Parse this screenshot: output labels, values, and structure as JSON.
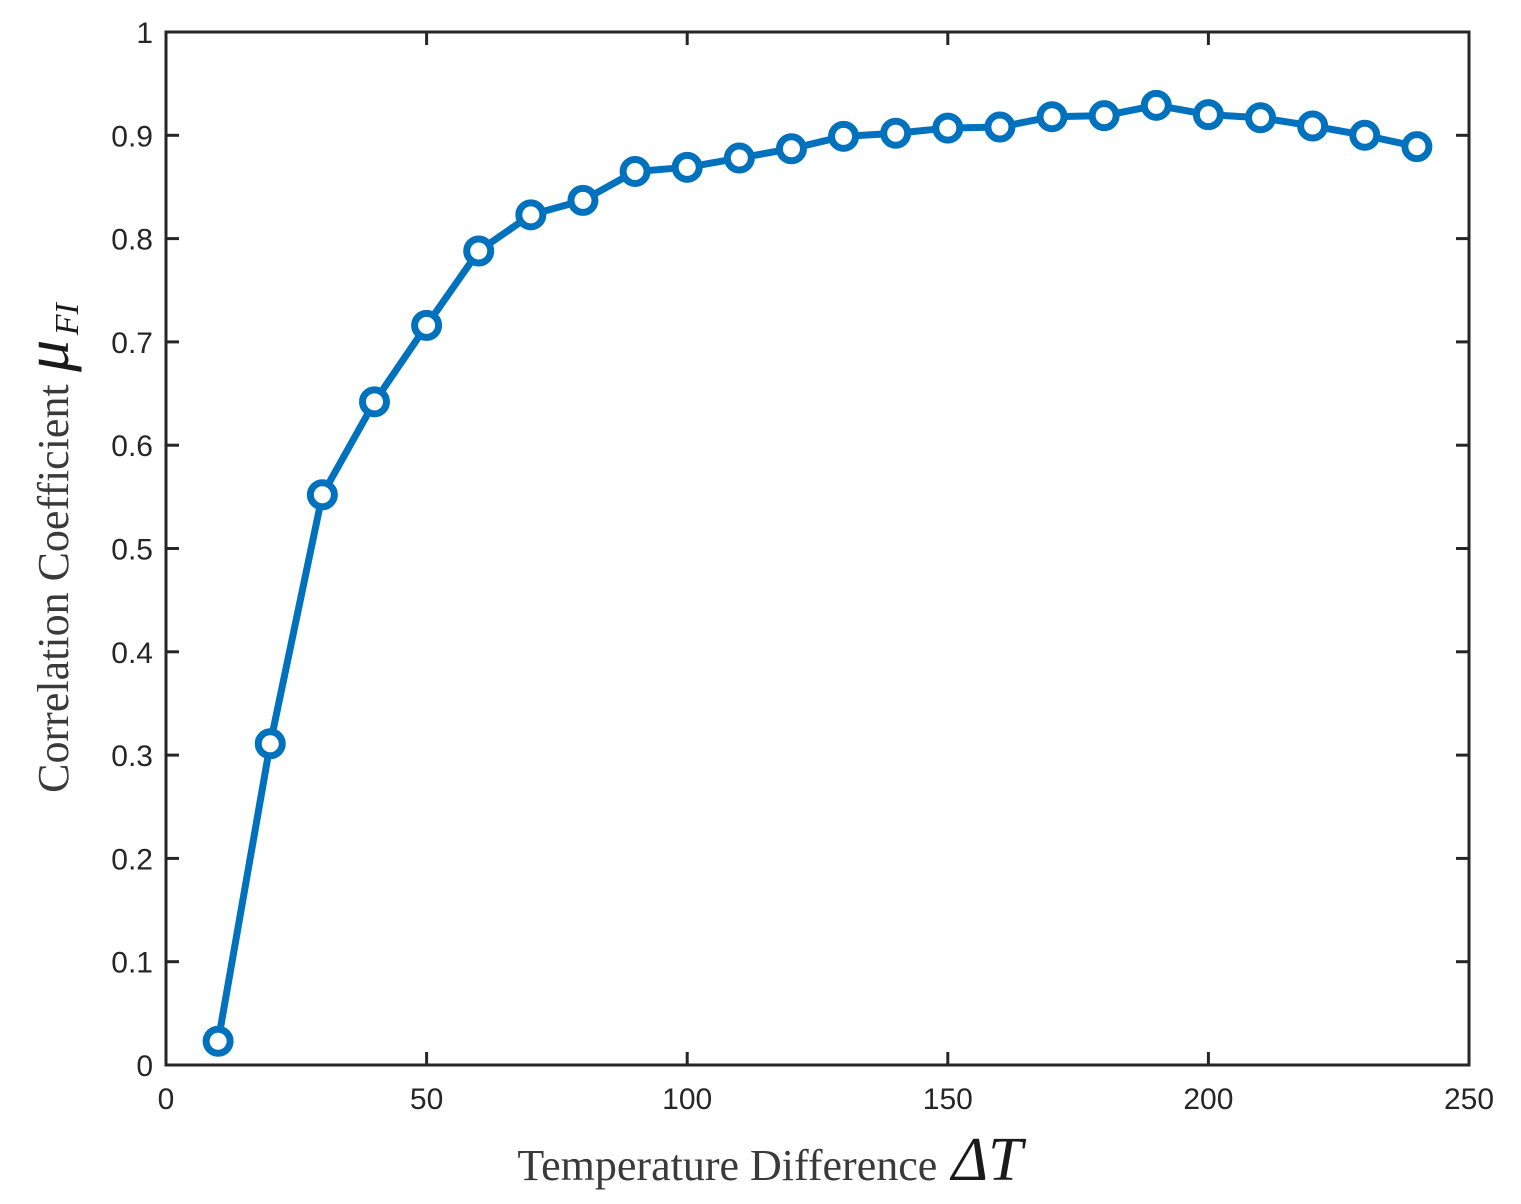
{
  "chart_data": {
    "type": "line",
    "title": "",
    "xlabel": "Temperature Difference",
    "xlabel_symbol": "ΔT",
    "ylabel": "Correlation Coefficient",
    "ylabel_symbol": "μ",
    "ylabel_symbol_sub": "FI",
    "xlim": [
      0,
      250
    ],
    "ylim": [
      0,
      1
    ],
    "x_ticks": [
      0,
      50,
      100,
      150,
      200,
      250
    ],
    "x_tick_labels": [
      "0",
      "50",
      "100",
      "150",
      "200",
      "250"
    ],
    "y_ticks": [
      0,
      0.1,
      0.2,
      0.3,
      0.4,
      0.5,
      0.6,
      0.7,
      0.8,
      0.9,
      1
    ],
    "y_tick_labels": [
      "0",
      "0.1",
      "0.2",
      "0.3",
      "0.4",
      "0.5",
      "0.6",
      "0.7",
      "0.8",
      "0.9",
      "1"
    ],
    "grid": false,
    "legend": "none",
    "series": [
      {
        "color": "#0072BD",
        "marker": "circle",
        "x": [
          10,
          20,
          30,
          40,
          50,
          60,
          70,
          80,
          90,
          100,
          110,
          120,
          130,
          140,
          150,
          160,
          170,
          180,
          190,
          200,
          210,
          220,
          230,
          240
        ],
        "y": [
          0.023,
          0.311,
          0.552,
          0.642,
          0.716,
          0.788,
          0.823,
          0.837,
          0.865,
          0.869,
          0.878,
          0.887,
          0.899,
          0.902,
          0.907,
          0.908,
          0.918,
          0.919,
          0.929,
          0.92,
          0.917,
          0.909,
          0.9,
          0.889
        ]
      }
    ]
  }
}
